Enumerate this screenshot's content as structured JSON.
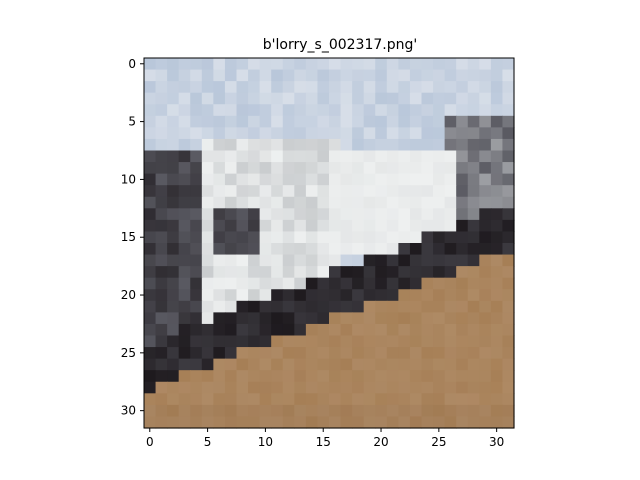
{
  "figure": {
    "title": "b'lorry_s_002317.png'"
  },
  "image": {
    "description_hint": "",
    "pixel_grid": [
      32,
      32
    ]
  },
  "chart_data": {
    "type": "heatmap",
    "title": "b'lorry_s_002317.png'",
    "xlabel": "",
    "ylabel": "",
    "xlim": [
      -0.5,
      31.5
    ],
    "ylim": [
      31.5,
      -0.5
    ],
    "x_ticks": [
      0,
      5,
      10,
      15,
      20,
      25,
      30
    ],
    "y_ticks": [
      0,
      5,
      10,
      15,
      20,
      25,
      30
    ],
    "x_tick_labels": [
      "0",
      "5",
      "10",
      "15",
      "20",
      "25",
      "30"
    ],
    "y_tick_labels": [
      "0",
      "5",
      "10",
      "15",
      "20",
      "25",
      "30"
    ]
  },
  "colors": {
    "sky": "#b9c7da",
    "sky_light": "#d7dee8",
    "truck_white": "#eef0f0",
    "truck_grey": "#c9ccce",
    "shadow": "#1e1a1e",
    "dark_grey": "#5a5a62",
    "dirt": "#a67f56",
    "dirt_light": "#b6916a",
    "dirt_dark": "#7f5f45"
  }
}
